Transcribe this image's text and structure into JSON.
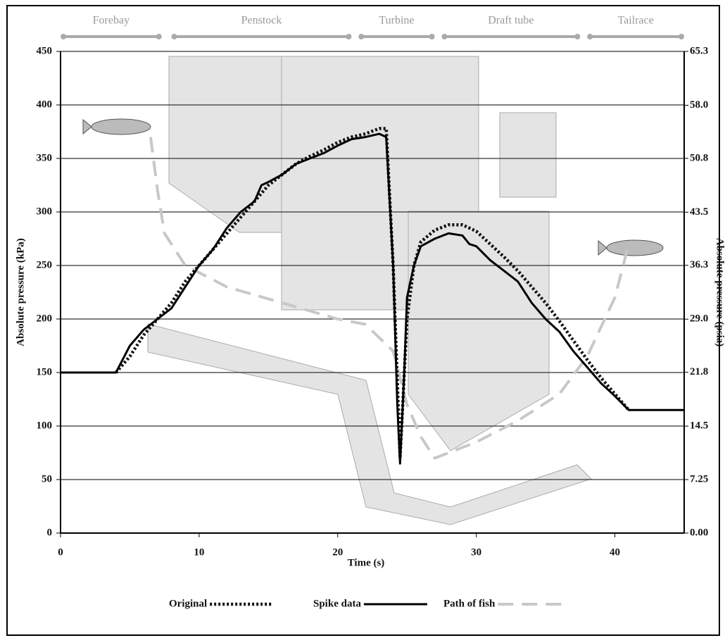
{
  "chart_data": {
    "type": "line",
    "x_label": "Time (s)",
    "y_label": "Absolute pressure (kPa)",
    "y2_label": "Absolute pressure (psia)",
    "xlim": [
      0,
      45
    ],
    "xticks": [
      0,
      10,
      20,
      30,
      40
    ],
    "ylim": [
      0,
      450
    ],
    "yticks": [
      0,
      50,
      100,
      150,
      200,
      250,
      300,
      350,
      400,
      450
    ],
    "y2lim": [
      0,
      65.3
    ],
    "y2ticks": [
      {
        "value": 0,
        "label": "0.00"
      },
      7.25,
      14.5,
      21.8,
      {
        "value": 29,
        "label": "29.0"
      },
      36.3,
      43.5,
      50.8,
      {
        "value": 58,
        "label": "58.0"
      },
      65.3
    ],
    "grid": true,
    "sections": [
      {
        "name": "Forebay",
        "start": 0,
        "end": 7.3
      },
      {
        "name": "Penstock",
        "start": 8,
        "end": 21
      },
      {
        "name": "Turbine",
        "start": 21.5,
        "end": 27
      },
      {
        "name": "Draft tube",
        "start": 27.5,
        "end": 37.5
      },
      {
        "name": "Tailrace",
        "start": 38,
        "end": 45
      }
    ],
    "series": [
      {
        "name": "Original",
        "color": "#111111",
        "line_style": "dotted",
        "x": [
          4,
          5,
          6,
          7,
          8,
          9,
          10,
          12,
          14,
          15,
          16,
          17,
          18,
          19,
          20,
          21,
          22,
          23,
          23.5,
          24,
          24.5,
          25,
          25.5,
          26,
          27,
          28,
          29,
          30,
          31,
          32,
          33,
          34,
          35,
          36,
          37,
          38,
          39,
          40,
          41
        ],
        "values": [
          150,
          165,
          185,
          200,
          215,
          235,
          250,
          280,
          310,
          325,
          335,
          345,
          352,
          358,
          365,
          370,
          373,
          378,
          378,
          250,
          70,
          200,
          250,
          272,
          283,
          288,
          288,
          282,
          270,
          258,
          245,
          230,
          215,
          198,
          180,
          162,
          145,
          130,
          115
        ]
      },
      {
        "name": "Spike data",
        "color": "#000000",
        "line_style": "solid",
        "x": [
          0,
          4,
          5,
          6,
          7,
          8,
          9,
          10,
          11,
          12,
          13,
          14,
          14.5,
          15,
          16,
          17,
          18,
          19,
          20,
          21,
          22,
          23,
          23.5,
          24,
          24.3,
          24.5,
          24.8,
          25,
          25.5,
          26,
          27,
          28,
          29,
          29.5,
          30,
          31,
          32,
          33,
          34,
          35,
          36,
          37,
          38,
          39,
          40,
          41,
          45
        ],
        "values": [
          150,
          150,
          175,
          190,
          200,
          210,
          230,
          250,
          265,
          285,
          300,
          310,
          325,
          328,
          335,
          345,
          350,
          355,
          362,
          368,
          370,
          373,
          370,
          250,
          120,
          65,
          150,
          220,
          250,
          268,
          275,
          280,
          278,
          270,
          268,
          255,
          245,
          235,
          215,
          200,
          188,
          170,
          155,
          140,
          128,
          115,
          115
        ]
      },
      {
        "name": "Path of fish",
        "color": "#c8c8c8",
        "line_style": "dashed",
        "x": [
          6.5,
          7,
          7.5,
          9,
          12,
          16,
          20,
          22,
          24,
          25,
          26,
          27,
          28,
          30,
          33,
          36,
          38,
          40,
          41
        ],
        "values": [
          370,
          320,
          280,
          250,
          230,
          215,
          200,
          195,
          170,
          120,
          90,
          70,
          75,
          85,
          105,
          130,
          165,
          220,
          270
        ]
      }
    ]
  }
}
